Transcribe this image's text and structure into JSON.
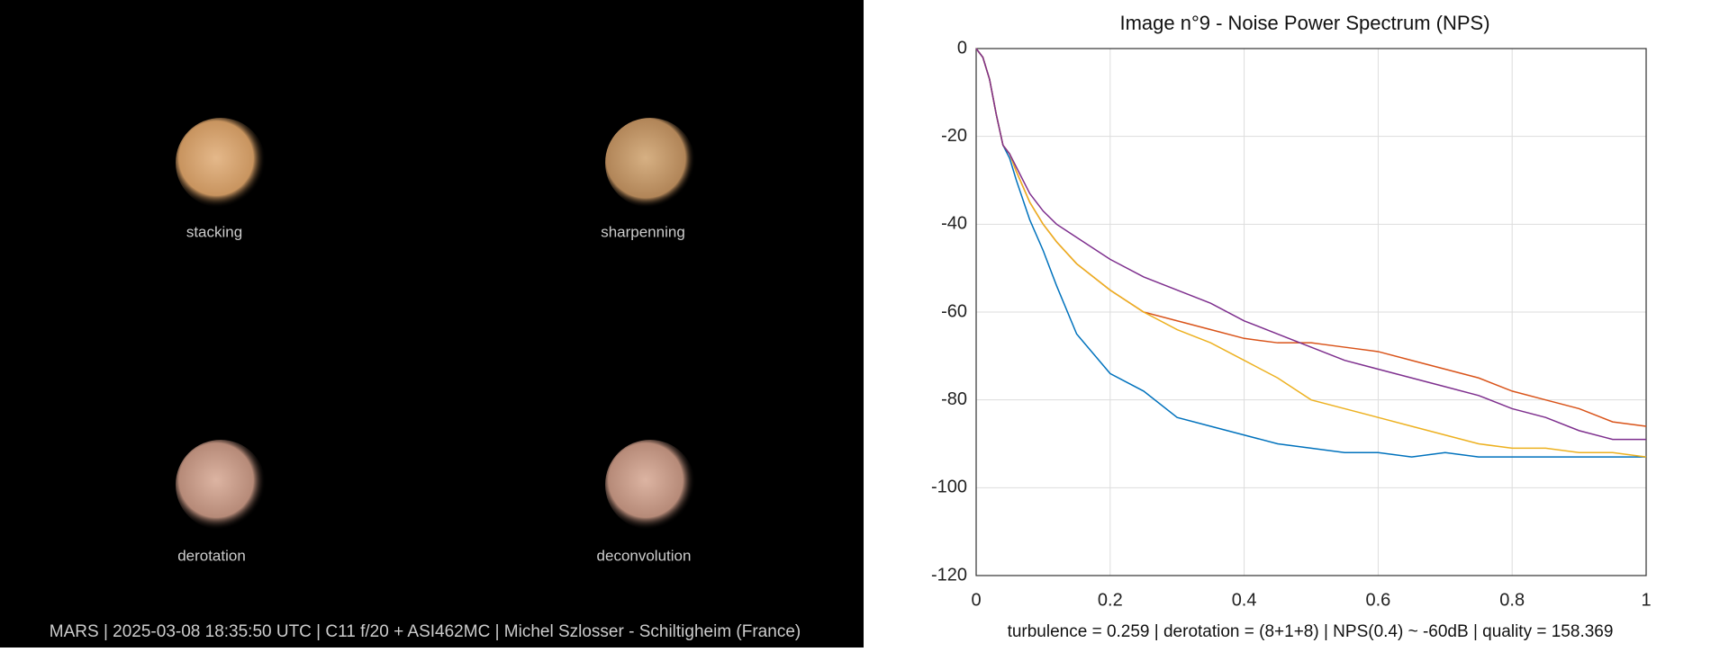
{
  "panels": [
    {
      "label": "stacking"
    },
    {
      "label": "sharpenning"
    },
    {
      "label": "derotation"
    },
    {
      "label": "deconvolution"
    }
  ],
  "caption": "MARS | 2025-03-08  18:35:50 UTC | C11 f/20 + ASI462MC | Michel Szlosser - Schiltigheim (France)",
  "chart_data": {
    "type": "line",
    "title": "Image n°9 - Noise Power Spectrum (NPS)",
    "caption": "turbulence = 0.259 | derotation = (8+1+8) | NPS(0.4) ~ -60dB |  quality = 158.369",
    "x": [
      0,
      0.01,
      0.02,
      0.03,
      0.04,
      0.05,
      0.06,
      0.08,
      0.1,
      0.12,
      0.15,
      0.2,
      0.25,
      0.3,
      0.35,
      0.4,
      0.45,
      0.5,
      0.55,
      0.6,
      0.65,
      0.7,
      0.75,
      0.8,
      0.85,
      0.9,
      0.95,
      1.0
    ],
    "series": [
      {
        "color": "#0072bd",
        "values": [
          0,
          -2,
          -7,
          -15,
          -22,
          -25,
          -30,
          -39,
          -46,
          -54,
          -65,
          -74,
          -78,
          -84,
          -86,
          -88,
          -90,
          -91,
          -92,
          -92,
          -93,
          -92,
          -93,
          -93,
          -93,
          -93,
          -93,
          -93
        ]
      },
      {
        "color": "#d95319",
        "values": [
          0,
          -2,
          -7,
          -15,
          -22,
          -24,
          -28,
          -35,
          -40,
          -44,
          -49,
          -55,
          -60,
          -62,
          -64,
          -66,
          -67,
          -67,
          -68,
          -69,
          -71,
          -73,
          -75,
          -78,
          -80,
          -82,
          -85,
          -86
        ]
      },
      {
        "color": "#edb120",
        "values": [
          0,
          -2,
          -7,
          -15,
          -22,
          -24,
          -28,
          -35,
          -40,
          -44,
          -49,
          -55,
          -60,
          -64,
          -67,
          -71,
          -75,
          -80,
          -82,
          -84,
          -86,
          -88,
          -90,
          -91,
          -91,
          -92,
          -92,
          -93
        ]
      },
      {
        "color": "#7e2f8e",
        "values": [
          0,
          -2,
          -7,
          -15,
          -22,
          -24,
          -27,
          -33,
          -37,
          -40,
          -43,
          -48,
          -52,
          -55,
          -58,
          -62,
          -65,
          -68,
          -71,
          -73,
          -75,
          -77,
          -79,
          -82,
          -84,
          -87,
          -89,
          -89
        ]
      }
    ],
    "xlim": [
      0,
      1
    ],
    "xticks": [
      0,
      0.2,
      0.4,
      0.6,
      0.8,
      1
    ],
    "ylim": [
      -120,
      0
    ],
    "yticks": [
      -120,
      -100,
      -80,
      -60,
      -40,
      -20,
      0
    ],
    "grid": true
  }
}
